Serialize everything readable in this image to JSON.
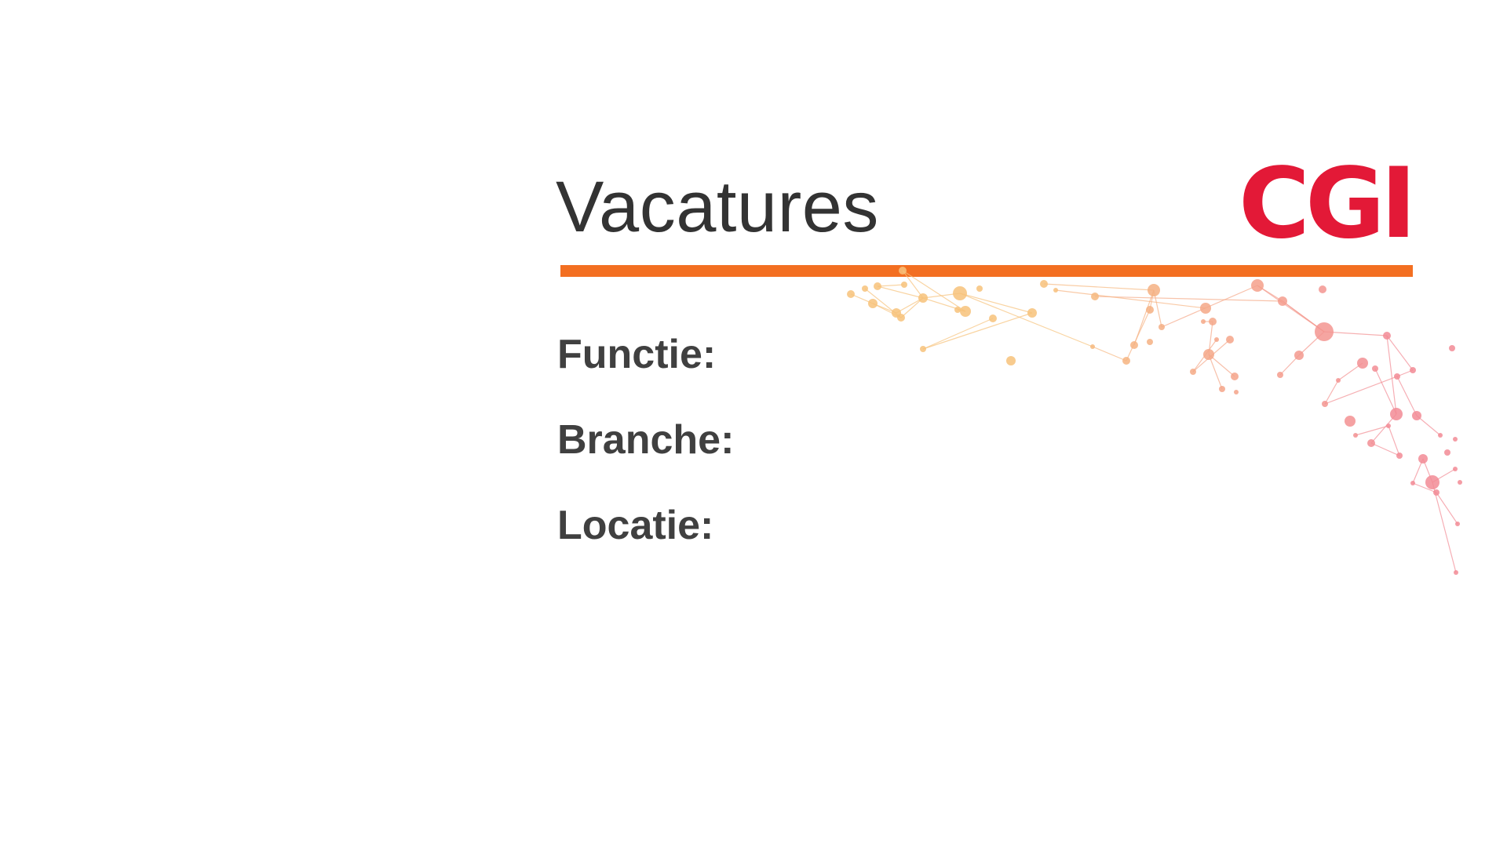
{
  "slide": {
    "title": "Vacatures",
    "logo_text": "CGI",
    "fields": [
      {
        "label": "Functie:"
      },
      {
        "label": "Branche:"
      },
      {
        "label": "Locatie:"
      }
    ]
  },
  "colors": {
    "brand_red": "#e31937",
    "accent_orange": "#f36f21",
    "text_dark": "#333333",
    "label_gray": "#404040",
    "network_warm": "#f7c27a",
    "network_red": "#f28b95"
  },
  "decoration": {
    "icon": "network-graph-icon"
  }
}
